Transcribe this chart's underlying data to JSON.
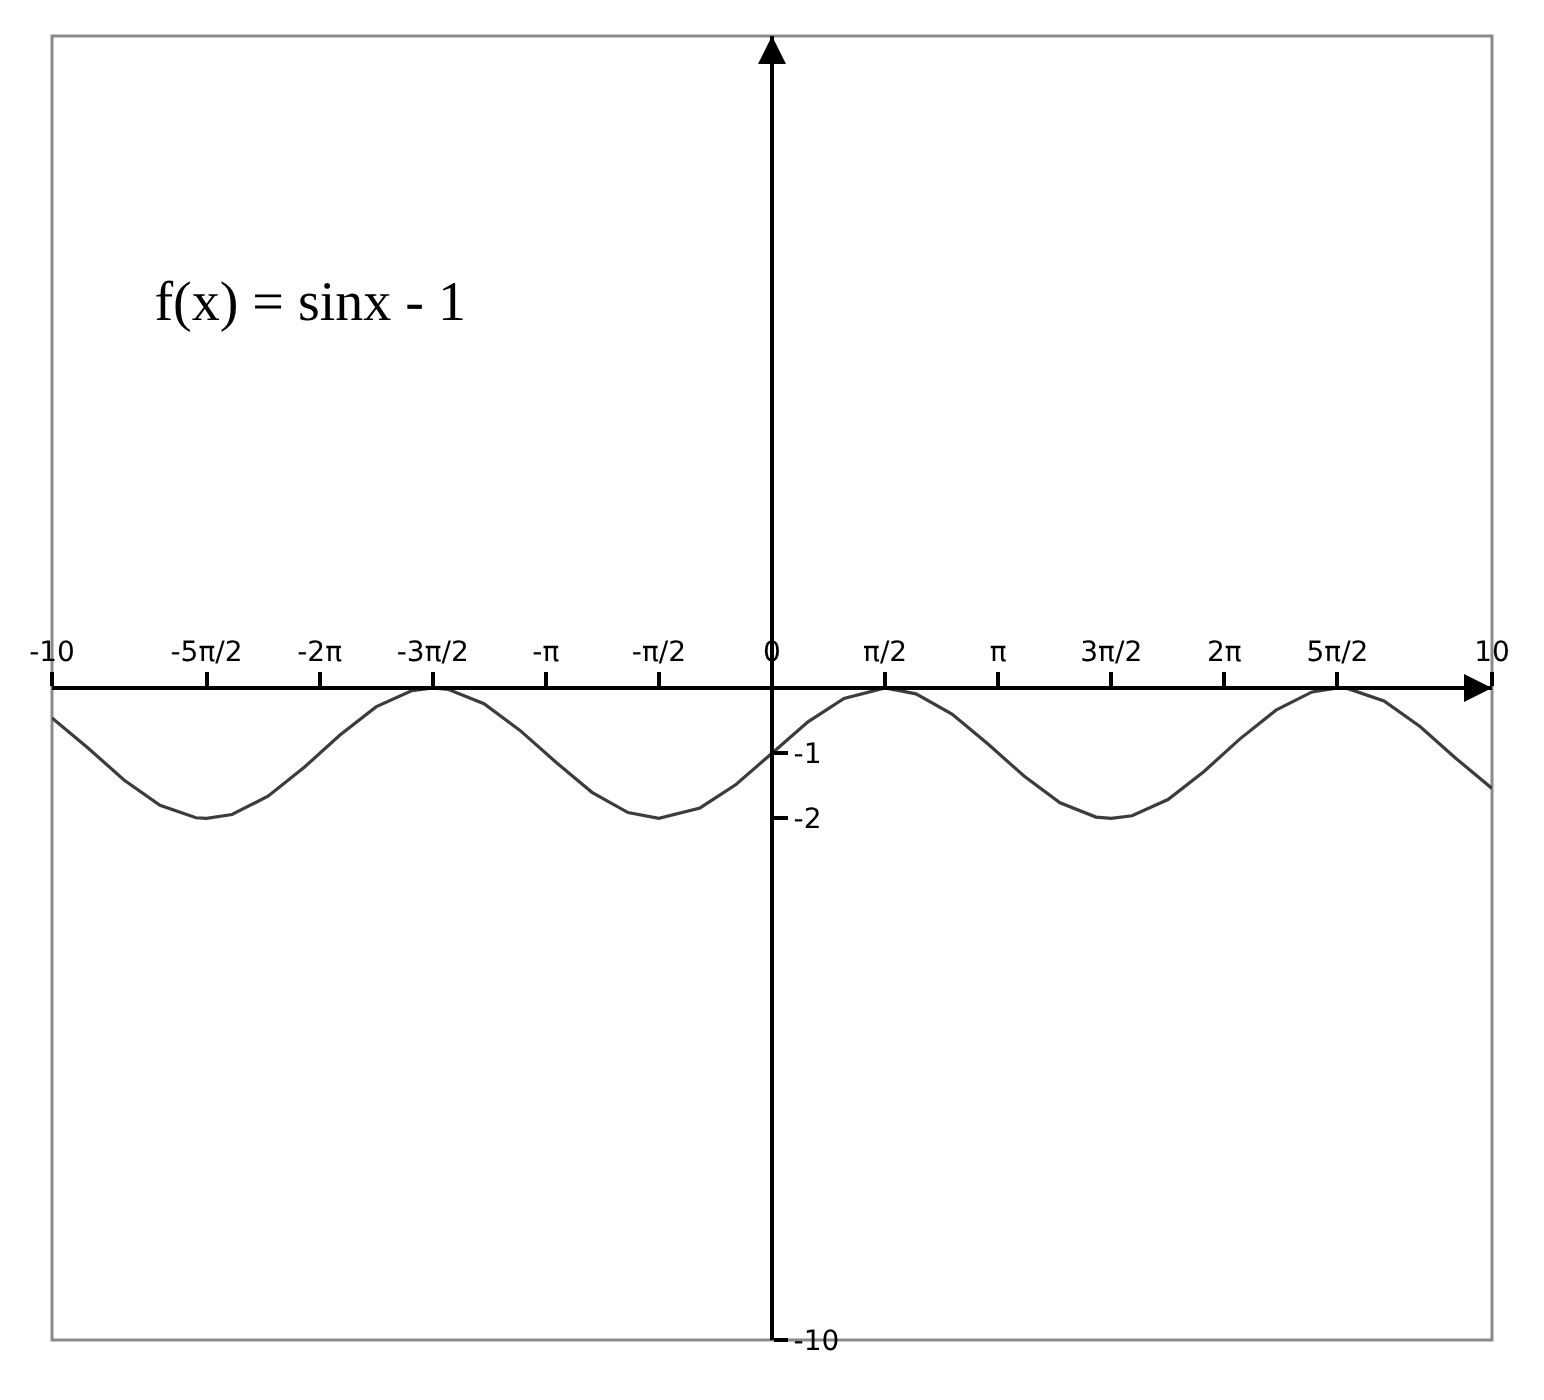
{
  "chart_data": {
    "type": "line",
    "title": "f(x) = sinx - 1",
    "xlim": [
      -10,
      10
    ],
    "ylim": [
      -10,
      10
    ],
    "xticks": [
      -10,
      {
        "value": -7.854,
        "label": "-5π/2"
      },
      {
        "value": -6.283,
        "label": "-2π"
      },
      {
        "value": -4.712,
        "label": "-3π/2"
      },
      {
        "value": -3.142,
        "label": "-π"
      },
      {
        "value": -1.571,
        "label": "-π/2"
      },
      0,
      {
        "value": 1.571,
        "label": "π/2"
      },
      {
        "value": 3.142,
        "label": "π"
      },
      {
        "value": 4.712,
        "label": "3π/2"
      },
      {
        "value": 6.283,
        "label": "2π"
      },
      {
        "value": 7.854,
        "label": "5π/2"
      },
      10
    ],
    "yticks": [
      -10,
      -2,
      -1
    ],
    "series": [
      {
        "color": "#3c3c3c",
        "x": [
          -10,
          -9.5,
          -9,
          -8.5,
          -8,
          -7.854,
          -7.5,
          -7,
          -6.5,
          -6,
          -5.5,
          -5,
          -4.712,
          -4.5,
          -4,
          -3.5,
          -3,
          -2.5,
          -2,
          -1.571,
          -1,
          -0.5,
          0,
          0.5,
          1,
          1.571,
          2,
          2.5,
          3,
          3.5,
          4,
          4.5,
          4.712,
          5,
          5.5,
          6,
          6.5,
          7,
          7.5,
          7.854,
          8,
          8.5,
          9,
          9.5,
          10
        ],
        "values": [
          -0.46,
          -0.92,
          -1.41,
          -1.8,
          -1.99,
          -2,
          -1.94,
          -1.66,
          -1.22,
          -0.72,
          -0.29,
          -0.04,
          0,
          -0.02,
          -0.24,
          -0.65,
          -1.14,
          -1.6,
          -1.91,
          -2,
          -1.84,
          -1.48,
          -1,
          -0.52,
          -0.16,
          0,
          -0.09,
          -0.4,
          -0.86,
          -1.35,
          -1.76,
          -1.98,
          -2,
          -1.96,
          -1.71,
          -1.28,
          -0.78,
          -0.34,
          -0.06,
          0,
          -0.01,
          -0.2,
          -0.59,
          -1.08,
          -1.54
        ]
      }
    ]
  }
}
